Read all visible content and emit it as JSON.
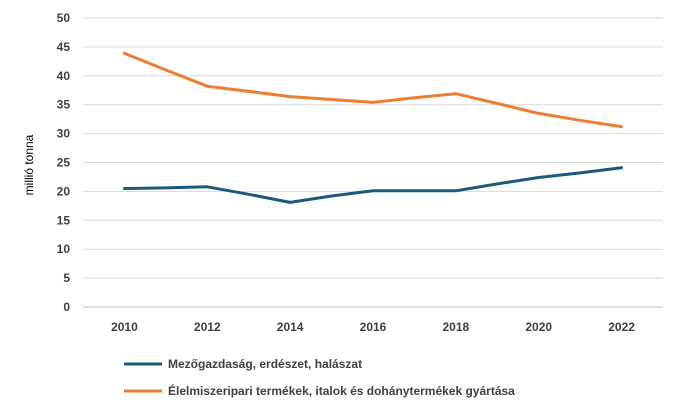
{
  "chart_data": {
    "type": "line",
    "title": "",
    "xlabel": "",
    "ylabel": "millió tonna",
    "x": [
      2010,
      2011,
      2012,
      2013,
      2014,
      2015,
      2016,
      2017,
      2018,
      2019,
      2020,
      2021,
      2022
    ],
    "xticks": [
      "2010",
      "2012",
      "2014",
      "2016",
      "2018",
      "2020",
      "2022"
    ],
    "xlim": [
      2009,
      2023
    ],
    "ylim": [
      0,
      50
    ],
    "yticks": [
      "0",
      "5",
      "10",
      "15",
      "20",
      "25",
      "30",
      "35",
      "40",
      "45",
      "50"
    ],
    "grid": true,
    "legend_position": "bottom",
    "series": [
      {
        "name": "Mezőgazdaság, erdészet, halászat",
        "color": "#1B5A7A",
        "values": [
          20.5,
          20.6,
          20.8,
          19.5,
          18.1,
          19.2,
          20.1,
          20.1,
          20.1,
          21.3,
          22.4,
          23.2,
          24.1
        ]
      },
      {
        "name": "Élelmiszeripari termékek, italok és dohánytermékek gyártása",
        "color": "#ED7D31",
        "values": [
          43.9,
          41.0,
          38.2,
          37.3,
          36.4,
          35.9,
          35.4,
          36.2,
          36.9,
          35.2,
          33.5,
          32.3,
          31.2
        ]
      }
    ]
  }
}
